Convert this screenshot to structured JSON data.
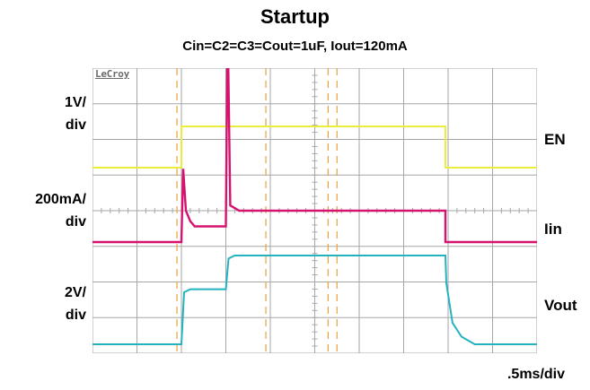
{
  "chart_data": {
    "type": "line",
    "title": "Startup",
    "subtitle": "Cin=C2=C3=Cout=1uF, Iout=120mA",
    "logo": "LeCroy",
    "x_scale_label": ".5ms/div",
    "xlim": [
      0,
      5
    ],
    "x_unit": "ms",
    "grid": true,
    "cursor_times_ms": [
      0.95,
      1.95,
      2.65,
      2.75
    ],
    "colors": {
      "grid": "#a6a6a6",
      "cursor": "#e8a23c",
      "EN": "#ecec3a",
      "Iin": "#d6126e",
      "Vout": "#22b3bf"
    },
    "series": [
      {
        "name": "EN",
        "label": "EN",
        "scale_label": [
          "1V/",
          "div"
        ],
        "unit": "V",
        "x": [
          0,
          1.0,
          1.0,
          3.97,
          3.97,
          5.0
        ],
        "y": [
          0,
          0,
          3.3,
          3.3,
          0,
          0
        ]
      },
      {
        "name": "Iin",
        "label": "Iin",
        "scale_label": [
          "200mA/",
          "div"
        ],
        "unit": "mA",
        "x": [
          0,
          1.0,
          1.02,
          1.05,
          1.1,
          1.15,
          1.5,
          1.52,
          1.55,
          1.6,
          1.65,
          3.97,
          3.97,
          5.0
        ],
        "y": [
          0,
          0,
          280,
          120,
          80,
          60,
          60,
          850,
          140,
          130,
          120,
          120,
          0,
          0
        ]
      },
      {
        "name": "Vout",
        "label": "Vout",
        "scale_label": [
          "2V/",
          "div"
        ],
        "unit": "V",
        "x": [
          0,
          1.0,
          1.03,
          1.1,
          1.5,
          1.53,
          1.6,
          3.97,
          3.98,
          4.05,
          4.15,
          4.3,
          5.0
        ],
        "y": [
          0,
          0,
          1.7,
          1.8,
          1.8,
          2.8,
          2.9,
          2.9,
          2.0,
          0.7,
          0.25,
          0.0,
          0.0
        ]
      }
    ]
  }
}
